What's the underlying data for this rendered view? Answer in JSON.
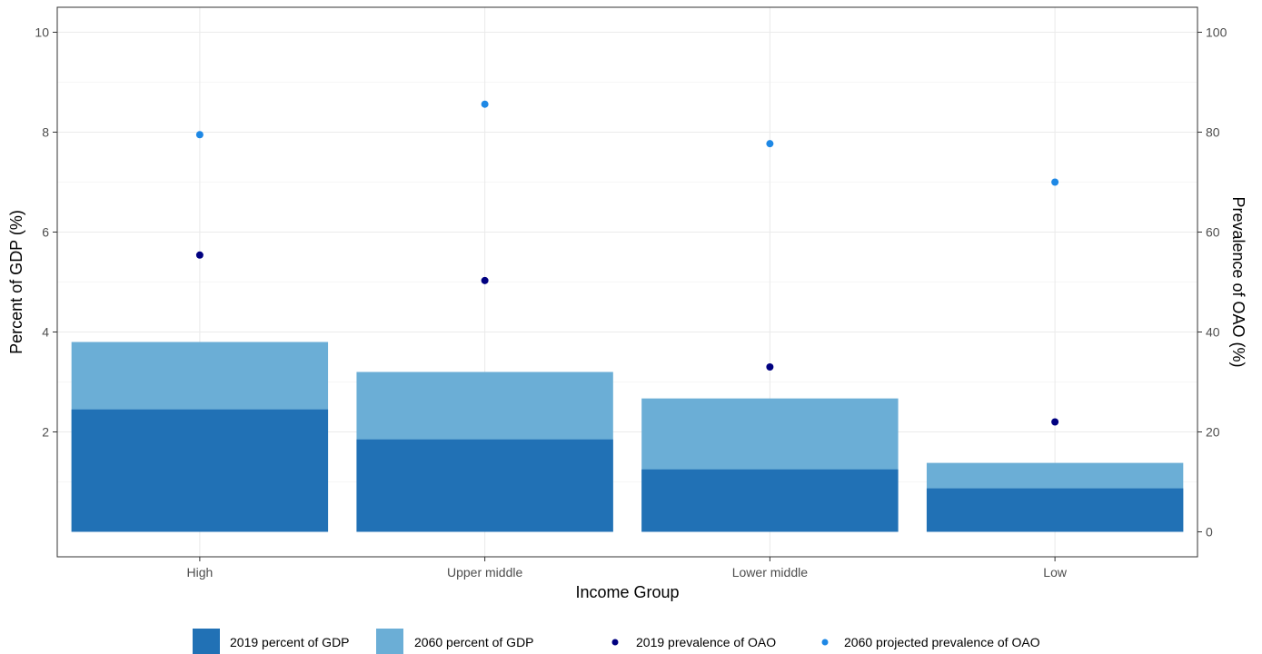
{
  "chart_data": {
    "type": "bar",
    "xlabel": "Income Group",
    "ylabel": "Percent of GDP (%)",
    "y2label": "Prevalence of OAO (%)",
    "categories": [
      "High",
      "Upper middle",
      "Lower middle",
      "Low"
    ],
    "ylim": [
      -0.5,
      10.5
    ],
    "y2lim": [
      -5,
      105
    ],
    "yticks": [
      2,
      4,
      6,
      8,
      10
    ],
    "y2ticks": [
      0,
      20,
      40,
      60,
      80,
      100
    ],
    "grid": true,
    "legend_position": "bottom",
    "series": [
      {
        "name": "2060 percent of GDP",
        "kind": "bar",
        "axis": "left",
        "color": "#6baed6",
        "values": [
          3.8,
          3.2,
          2.67,
          1.38
        ]
      },
      {
        "name": "2019 percent of GDP",
        "kind": "bar",
        "axis": "left",
        "color": "#2171b5",
        "values": [
          2.45,
          1.85,
          1.25,
          0.87
        ]
      },
      {
        "name": "2019 prevalence of OAO",
        "kind": "point",
        "axis": "right",
        "color": "#000080",
        "values": [
          55.4,
          50.3,
          33.0,
          22.0
        ]
      },
      {
        "name": "2060 projected prevalence of OAO",
        "kind": "point",
        "axis": "right",
        "color": "#1e88e5",
        "values": [
          79.5,
          85.6,
          77.7,
          70.0
        ]
      }
    ],
    "legend": [
      {
        "label": "2019 percent of GDP",
        "shape": "square",
        "color": "#2171b5"
      },
      {
        "label": "2060 percent of GDP",
        "shape": "square",
        "color": "#6baed6"
      },
      {
        "label": "2019 prevalence of OAO",
        "shape": "dot",
        "color": "#000080"
      },
      {
        "label": "2060 projected prevalence of OAO",
        "shape": "dot",
        "color": "#1e88e5"
      }
    ]
  }
}
